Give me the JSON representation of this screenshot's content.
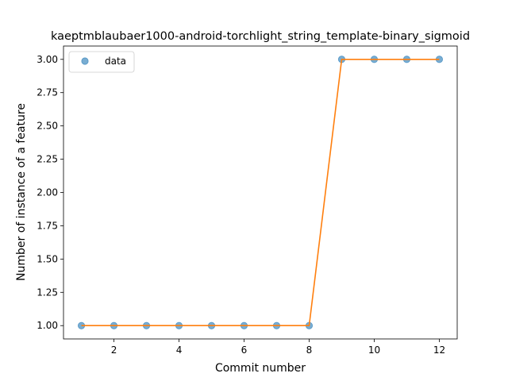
{
  "chart_data": {
    "type": "line",
    "title": "kaeptmblaubaer1000-android-torchlight_string_template-binary_sigmoid",
    "xlabel": "Commit number",
    "ylabel": "Number of instance of a feature",
    "xlim": [
      0.45,
      12.55
    ],
    "ylim": [
      0.9,
      3.1
    ],
    "xticks": [
      2,
      4,
      6,
      8,
      10,
      12
    ],
    "yticks": [
      1.0,
      1.25,
      1.5,
      1.75,
      2.0,
      2.25,
      2.5,
      2.75,
      3.0
    ],
    "ytick_labels": [
      "1.00",
      "1.25",
      "1.50",
      "1.75",
      "2.00",
      "2.25",
      "2.50",
      "2.75",
      "3.00"
    ],
    "grid": false,
    "legend_position": "top-left",
    "series": [
      {
        "name": "data",
        "style": "markers",
        "color": "#1f77b4",
        "x": [
          1,
          2,
          3,
          4,
          5,
          6,
          7,
          8,
          9,
          10,
          11,
          12
        ],
        "y": [
          1,
          1,
          1,
          1,
          1,
          1,
          1,
          1,
          3,
          3,
          3,
          3
        ]
      },
      {
        "style": "line",
        "color": "#ff7f0e",
        "x": [
          1,
          2,
          3,
          4,
          5,
          6,
          7,
          8,
          9,
          10,
          11,
          12
        ],
        "y": [
          1,
          1,
          1,
          1,
          1,
          1,
          1,
          1,
          3,
          3,
          3,
          3
        ]
      }
    ]
  }
}
